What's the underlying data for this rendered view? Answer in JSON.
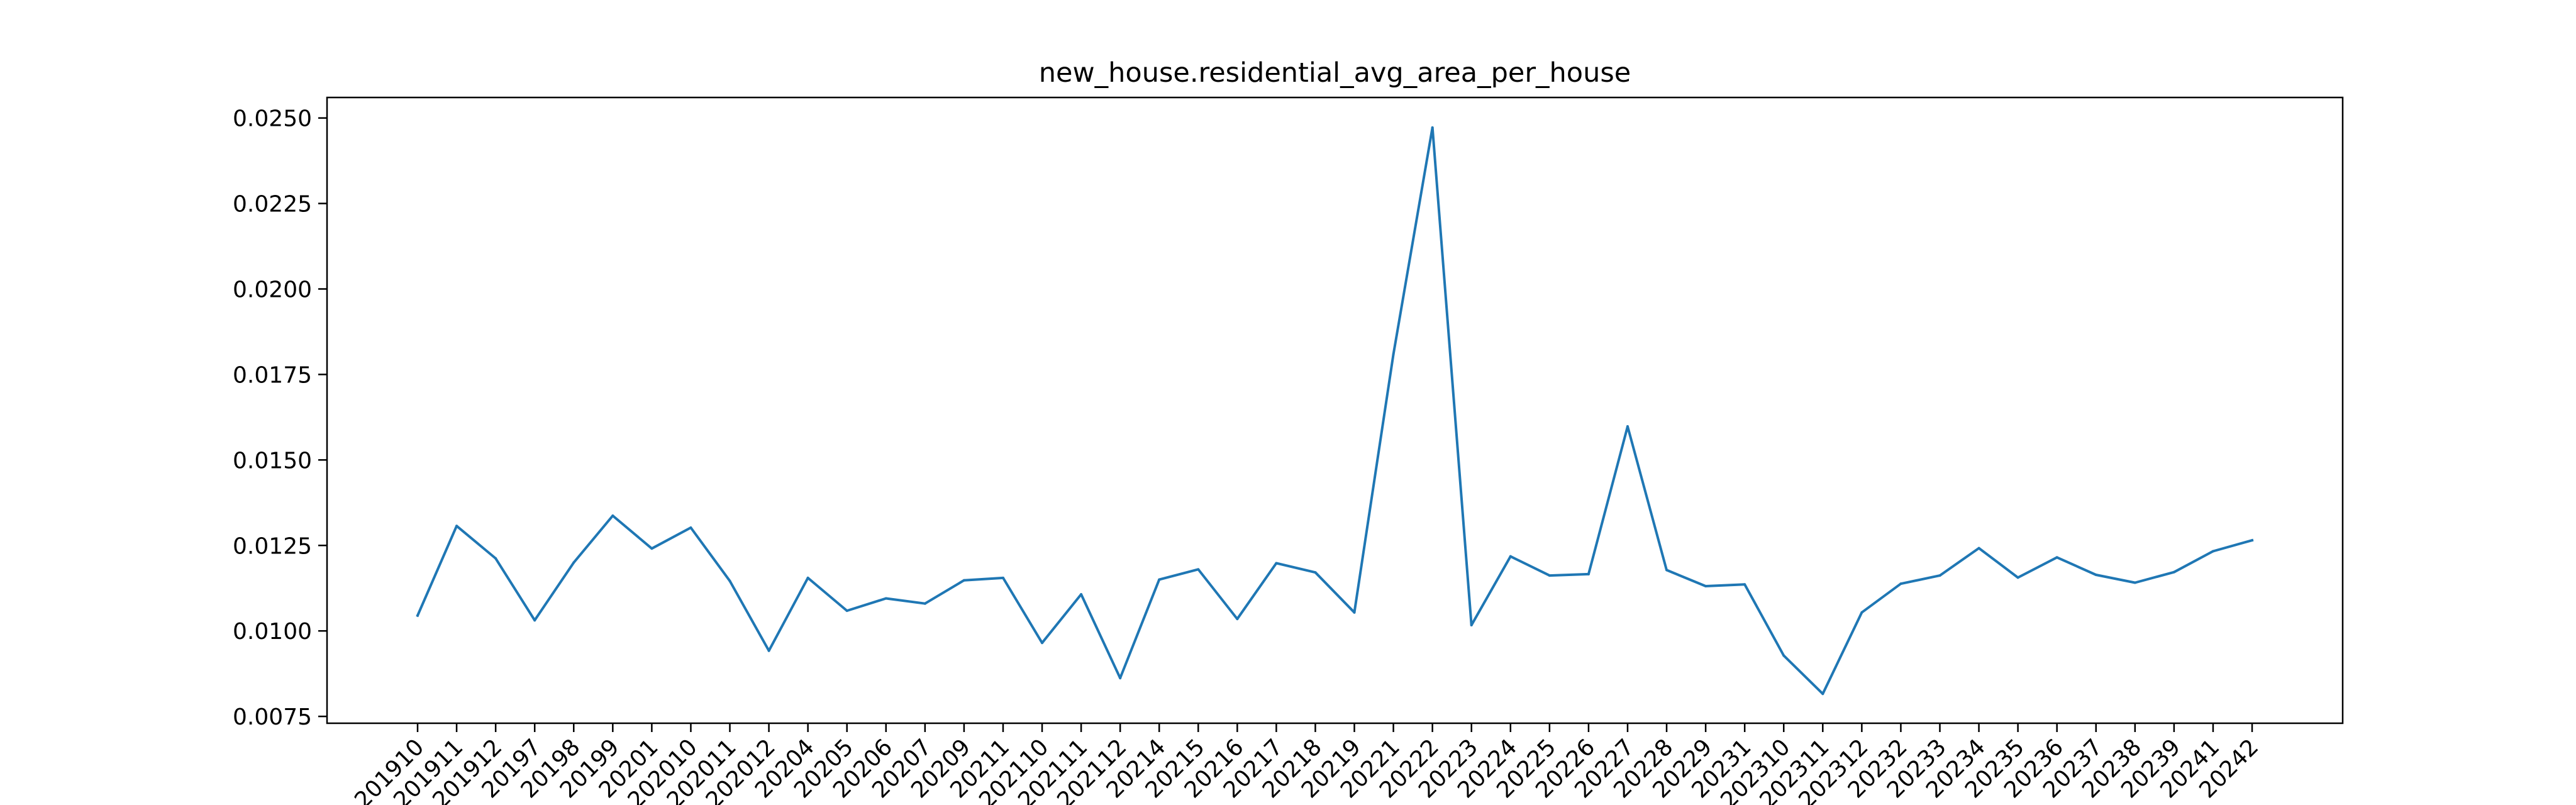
{
  "chart_data": {
    "type": "line",
    "title": "new_house.residential_avg_area_per_house",
    "xlabel": "",
    "ylabel": "",
    "categories": [
      "201910",
      "201911",
      "201912",
      "20197",
      "20198",
      "20199",
      "20201",
      "202010",
      "202011",
      "202012",
      "20204",
      "20205",
      "20206",
      "20207",
      "20209",
      "20211",
      "202110",
      "202111",
      "202112",
      "20214",
      "20215",
      "20216",
      "20217",
      "20218",
      "20219",
      "20221",
      "20222",
      "20223",
      "20224",
      "20225",
      "20226",
      "20227",
      "20228",
      "20229",
      "20231",
      "202310",
      "202311",
      "202312",
      "20232",
      "20233",
      "20234",
      "20235",
      "20236",
      "20237",
      "20238",
      "20239",
      "20241",
      "20242"
    ],
    "series": [
      {
        "color": "#1f77b4",
        "values": [
          0.01045,
          0.01307,
          0.01212,
          0.01031,
          0.012,
          0.01337,
          0.01241,
          0.01302,
          0.01146,
          0.00942,
          0.01155,
          0.01059,
          0.01095,
          0.0108,
          0.01148,
          0.01155,
          0.00965,
          0.01107,
          0.00862,
          0.0115,
          0.0118,
          0.01035,
          0.01198,
          0.01171,
          0.01054,
          0.01809,
          0.02472,
          0.01017,
          0.01218,
          0.01162,
          0.01166,
          0.01598,
          0.01178,
          0.01131,
          0.01136,
          0.00928,
          0.00816,
          0.01054,
          0.01138,
          0.01162,
          0.01242,
          0.01156,
          0.01215,
          0.01164,
          0.01141,
          0.01172,
          0.01233,
          0.01265
        ]
      }
    ],
    "ylim": [
      0.0073,
      0.0256
    ],
    "yticks": [
      "0.0075",
      "0.0100",
      "0.0125",
      "0.0150",
      "0.0175",
      "0.0200",
      "0.0225",
      "0.0250"
    ],
    "grid": false,
    "legend": "none"
  }
}
